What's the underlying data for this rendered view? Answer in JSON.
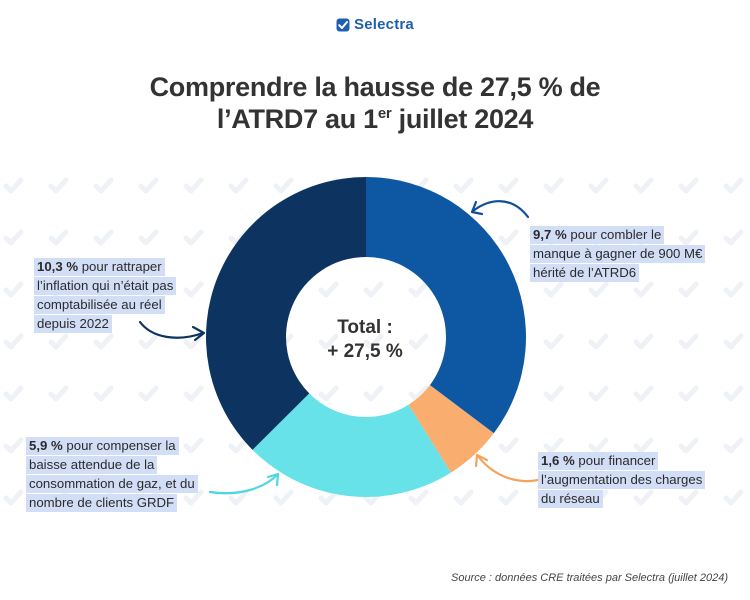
{
  "brand": {
    "name": "Selectra",
    "color": "#1f5fb0"
  },
  "title": {
    "line1": "Comprendre la hausse de 27,5 % de",
    "line2_pre": "l’ATRD7 au 1",
    "line2_sup": "er",
    "line2_post": " juillet 2024"
  },
  "center": {
    "line1": "Total :",
    "line2": "+ 27,5 %"
  },
  "source": "Source : données CRE traitées par Selectra (juillet 2024)",
  "callouts": {
    "manque": {
      "value": "9,7 %",
      "l1": " pour combler le",
      "l2": "manque à gagner de 900 M€",
      "l3": "hérité de l’ATRD6"
    },
    "inflation": {
      "value": "10,3  %",
      "l1": " pour rattraper",
      "l2": "l’inflation qui n’était pas",
      "l3": "comptabilisée au réel",
      "l4": "depuis 2022"
    },
    "charges": {
      "value": "1,6 %",
      "l1": " pour financer",
      "l2": "l’augmentation des charges",
      "l3": "du réseau"
    },
    "clients": {
      "value": "5,9 %",
      "l1": " pour compenser la",
      "l2": "baisse attendue de la",
      "l3": "consommation de gaz, et du",
      "l4": "nombre de clients GRDF"
    }
  },
  "chart_data": {
    "type": "pie",
    "variant": "donut",
    "total": 27.5,
    "unit": "%",
    "series": [
      {
        "label": "9,7 %",
        "value": 9.7,
        "color": "#0e58a3"
      },
      {
        "label": "1,6 %",
        "value": 1.6,
        "color": "#f9ae6f"
      },
      {
        "label": "5,9 %",
        "value": 5.9,
        "color": "#67e2e8"
      },
      {
        "label": "10,3 %",
        "value": 10.3,
        "color": "#0d3461"
      }
    ]
  }
}
